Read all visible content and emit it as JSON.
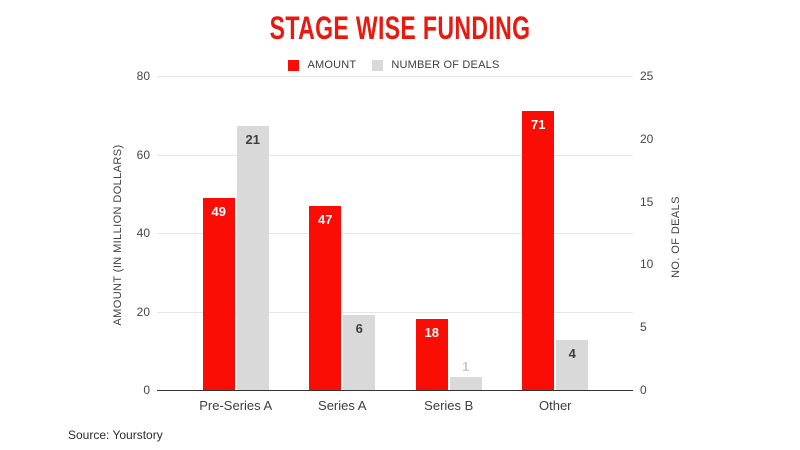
{
  "title": "STAGE WISE FUNDING",
  "source": "Source: Yourstory",
  "legend": [
    {
      "label": "AMOUNT",
      "color": "#f90d05"
    },
    {
      "label": "NUMBER OF DEALS",
      "color": "#d9d9d9"
    }
  ],
  "colors": {
    "title": "#e8190f",
    "amount_bar": "#f90d05",
    "deals_bar": "#d9d9d9",
    "amount_label": "#ffffff",
    "deals_label": "#3d3d3d",
    "outside_label": "#c7c7c7",
    "gridline": "#e6e6e6",
    "baseline": "#333333"
  },
  "chart_data": {
    "type": "bar",
    "title": "STAGE WISE FUNDING",
    "categories": [
      "Pre-Series A",
      "Series A",
      "Series B",
      "Other"
    ],
    "series": [
      {
        "name": "AMOUNT",
        "axis": "left",
        "color": "#f90d05",
        "label_color": "#ffffff",
        "values": [
          49,
          47,
          18,
          71
        ]
      },
      {
        "name": "NUMBER OF DEALS",
        "axis": "right",
        "color": "#d9d9d9",
        "label_color": "#3d3d3d",
        "values": [
          21,
          6,
          1,
          4
        ]
      }
    ],
    "left_axis": {
      "label": "AMOUNT (IN MILLION DOLLARS)",
      "ticks": [
        0,
        20,
        40,
        60,
        80
      ],
      "range": [
        0,
        80
      ]
    },
    "right_axis": {
      "label": "NO. OF DEALS",
      "ticks": [
        0,
        5,
        10,
        15,
        20,
        25
      ],
      "range": [
        0,
        25
      ]
    },
    "grid": "horizontal major gridlines on left-axis values 20/40/60/80",
    "legend_position": "top-center",
    "data_labels": "inside bar top; outside above bar when bar too short"
  }
}
